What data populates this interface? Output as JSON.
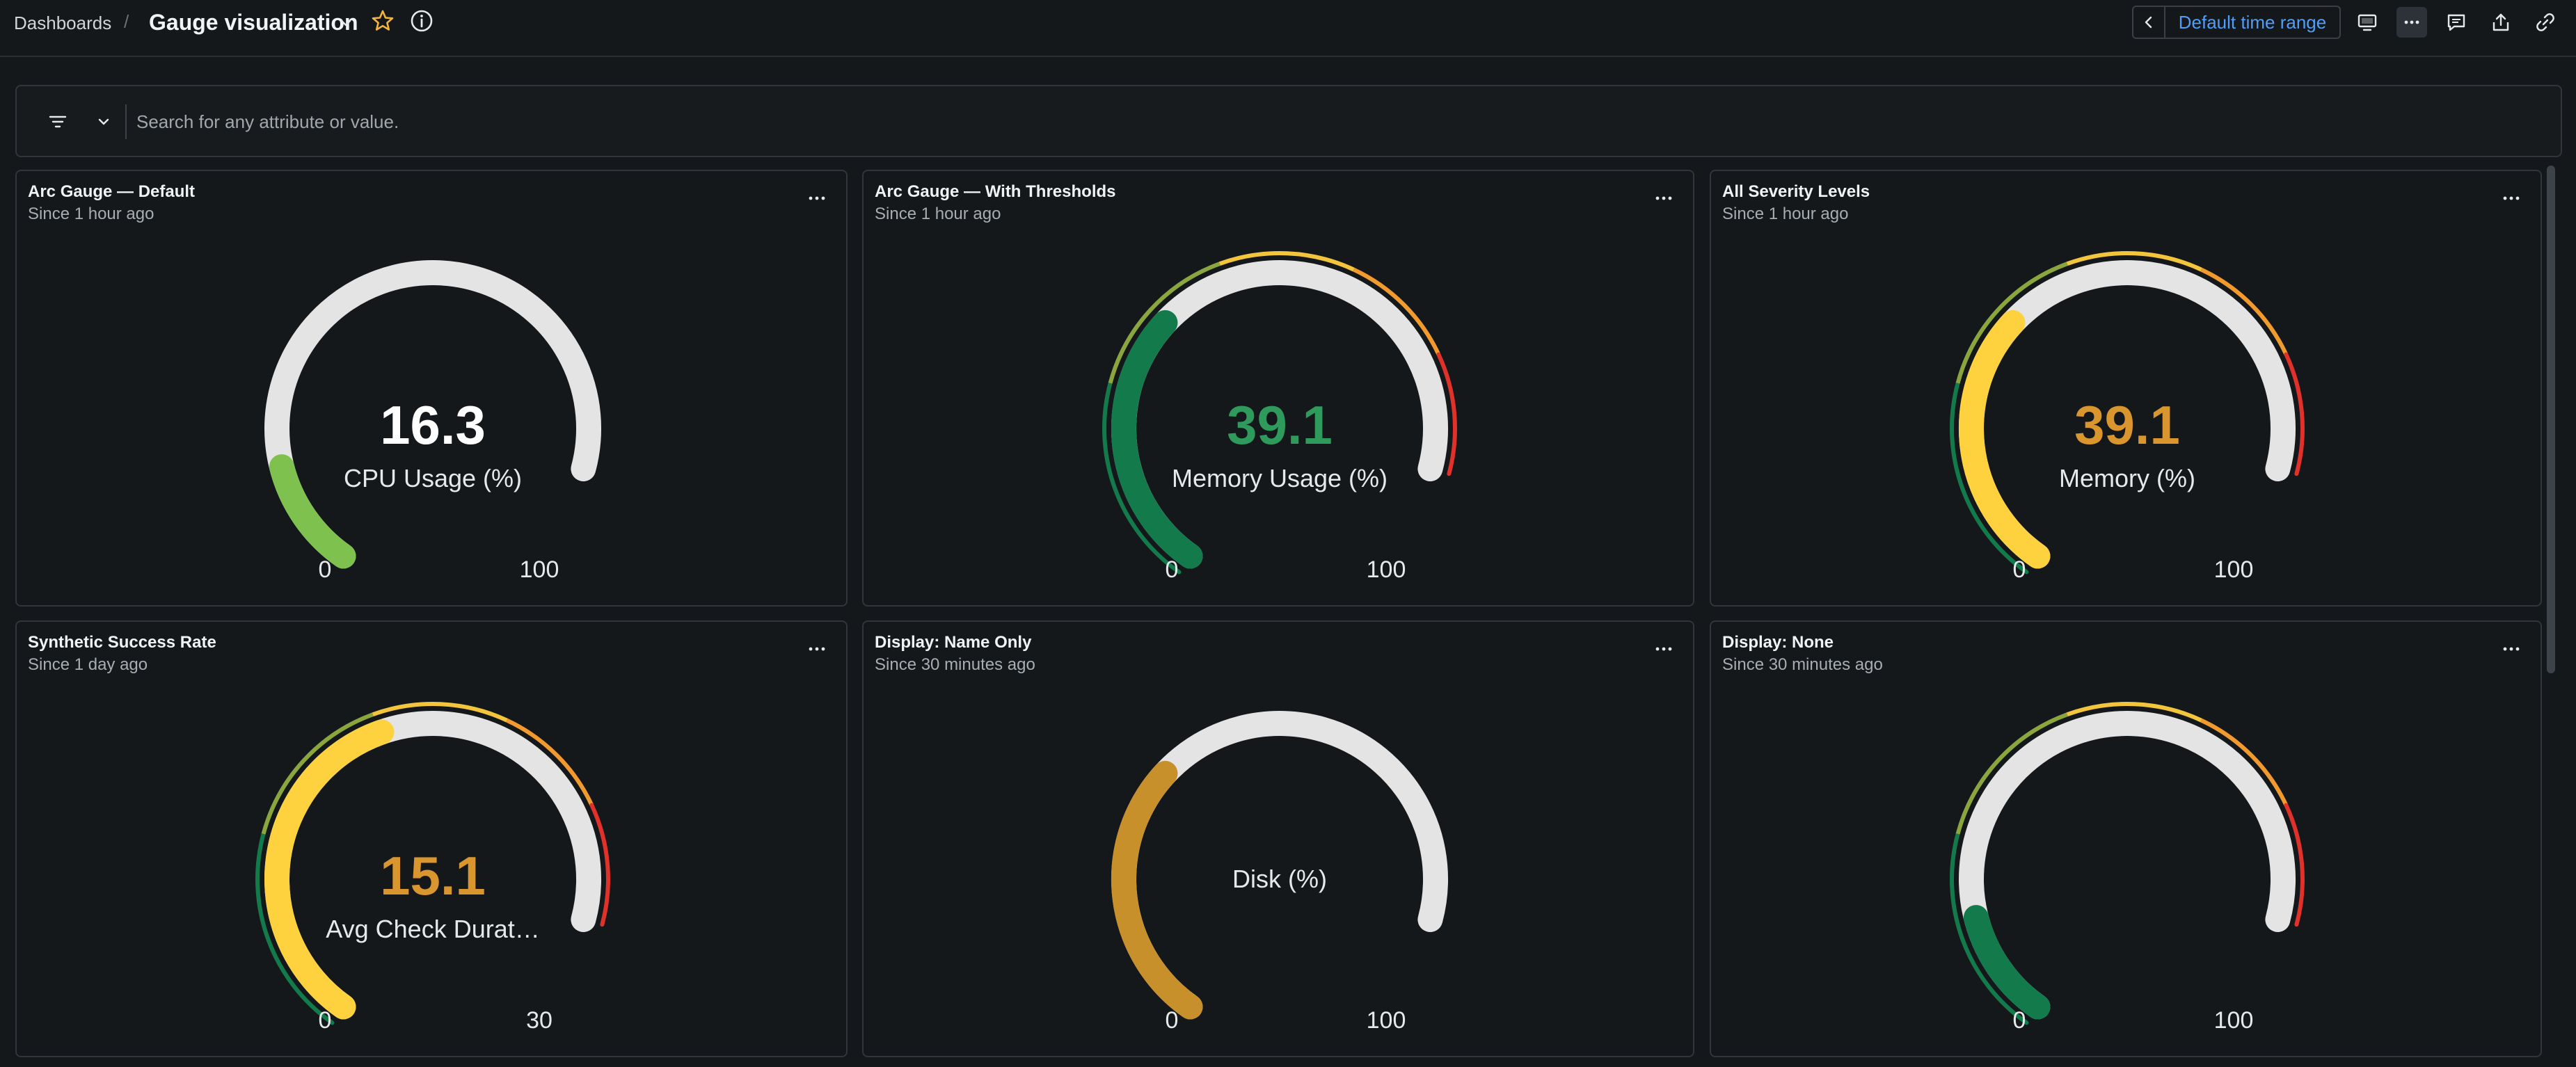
{
  "header": {
    "breadcrumb": "Dashboards",
    "separator": "/",
    "title": "Gauge visualization",
    "time_range_label": "Default time range",
    "icons": [
      "chevron-down-icon",
      "star-icon",
      "info-icon",
      "chevron-left-icon",
      "tv-mode-icon",
      "more-icon",
      "comment-icon",
      "share-icon",
      "link-icon"
    ]
  },
  "filter": {
    "placeholder": "Search for any attribute or value.",
    "value": ""
  },
  "colors": {
    "track": "#e4e4e4",
    "green_light": "#7ec14e",
    "green_dark": "#137a4b",
    "value_green": "#2e9a5c",
    "yellow": "#fdd23e",
    "orange_text": "#d9962f",
    "disk_amber": "#c7902b",
    "threshold_red": "#e0312b",
    "accent_blue": "#4f9ef7"
  },
  "panels": [
    {
      "title": "Arc Gauge — Default",
      "subtitle": "Since 1 hour ago",
      "value_text": "16.3",
      "label": "CPU Usage (%)",
      "min_label": "0",
      "max_label": "100",
      "value": 16.3,
      "min": 0,
      "max": 100,
      "fill_color": "#7ec14e",
      "value_color": "#ffffff",
      "thresholds": false
    },
    {
      "title": "Arc Gauge — With Thresholds",
      "subtitle": "Since 1 hour ago",
      "value_text": "39.1",
      "label": "Memory Usage (%)",
      "min_label": "0",
      "max_label": "100",
      "value": 39.1,
      "min": 0,
      "max": 100,
      "fill_color": "#137a4b",
      "value_color": "#2e9a5c",
      "thresholds": true
    },
    {
      "title": "All Severity Levels",
      "subtitle": "Since 1 hour ago",
      "value_text": "39.1",
      "label": "Memory (%)",
      "min_label": "0",
      "max_label": "100",
      "value": 39.1,
      "min": 0,
      "max": 100,
      "fill_color": "#fdd23e",
      "value_color": "#d9962f",
      "thresholds": true
    },
    {
      "title": "Synthetic Success Rate",
      "subtitle": "Since 1 day ago",
      "value_text": "15.1",
      "label": "Avg Check Durat…",
      "min_label": "0",
      "max_label": "30",
      "value": 15.1,
      "min": 0,
      "max": 30,
      "fill_color": "#fdd23e",
      "value_color": "#d9962f",
      "thresholds": true
    },
    {
      "title": "Display: Name Only",
      "subtitle": "Since 30 minutes ago",
      "value_text": "",
      "label": "Disk (%)",
      "min_label": "0",
      "max_label": "100",
      "value": 39.1,
      "min": 0,
      "max": 100,
      "fill_color": "#c7902b",
      "value_color": "#ffffff",
      "thresholds": false
    },
    {
      "title": "Display: None",
      "subtitle": "Since 30 minutes ago",
      "value_text": "",
      "label": "",
      "min_label": "0",
      "max_label": "100",
      "value": 16.3,
      "min": 0,
      "max": 100,
      "fill_color": "#137a4b",
      "value_color": "#ffffff",
      "thresholds": true
    }
  ]
}
